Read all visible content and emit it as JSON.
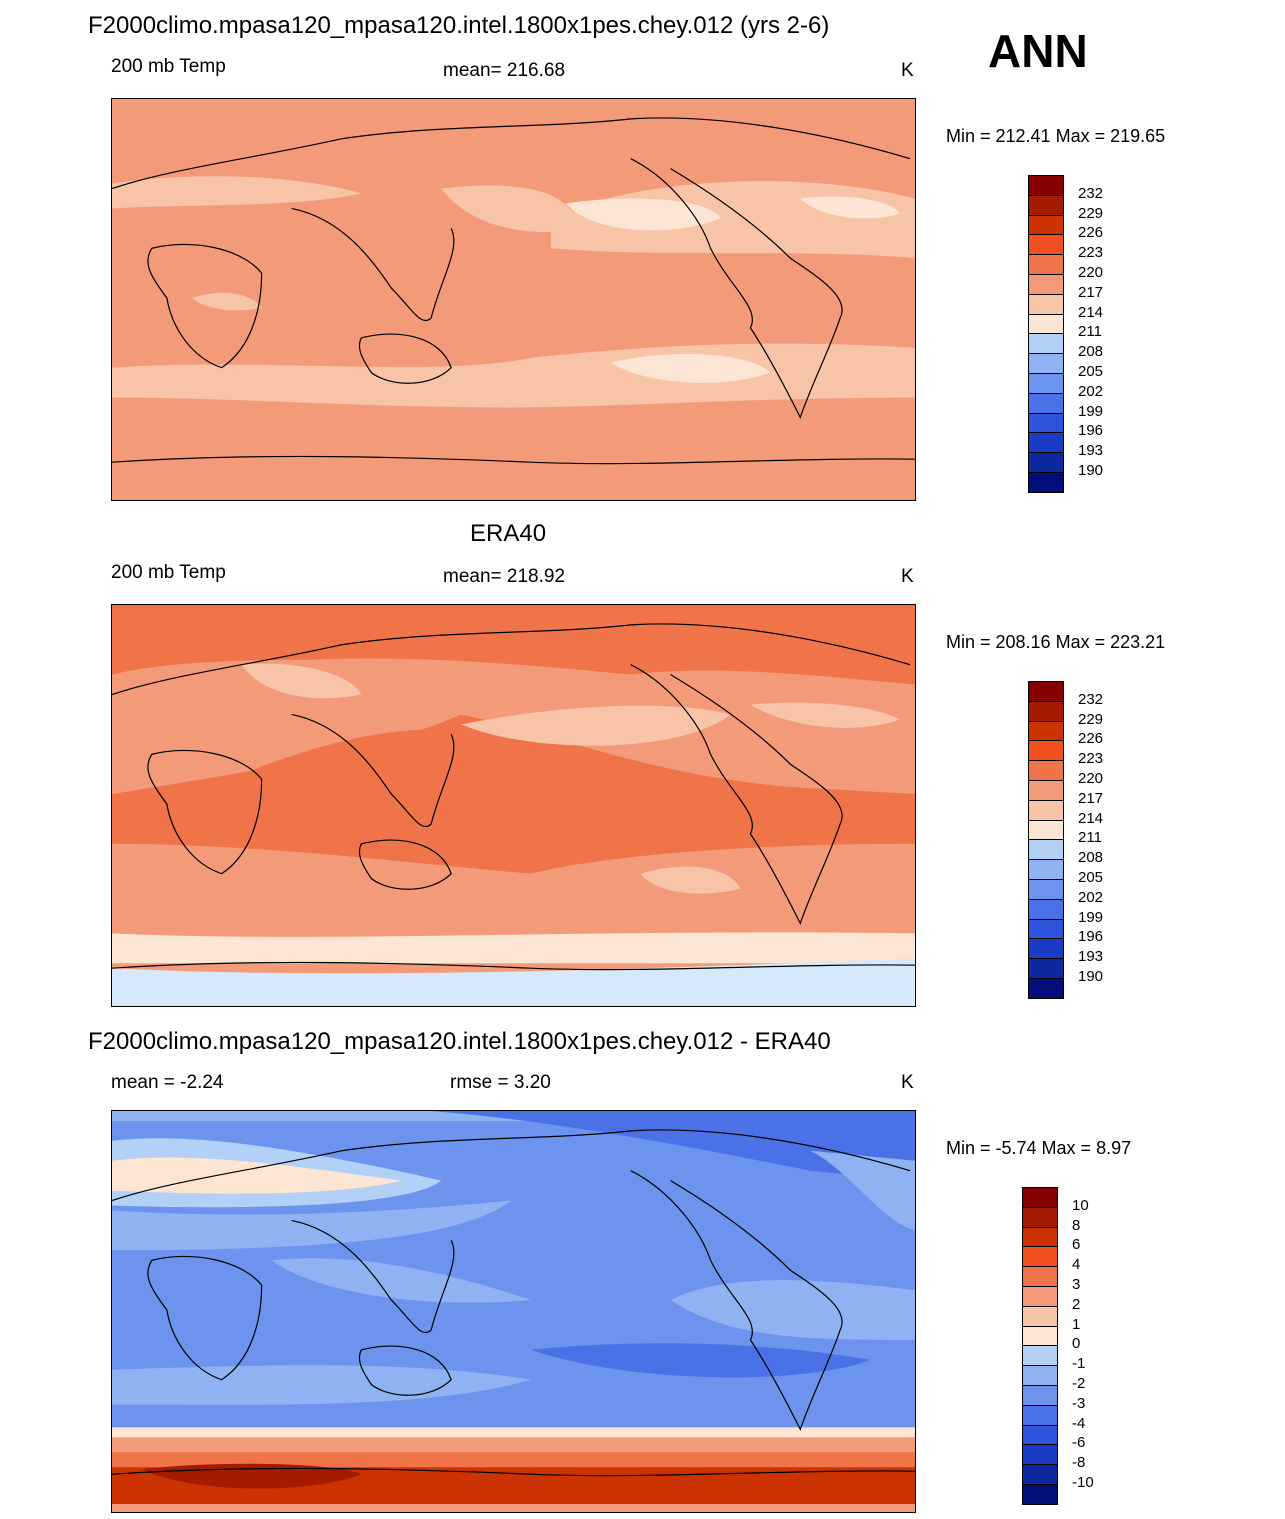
{
  "season": "ANN",
  "colors": {
    "warm_scale": [
      "#850000",
      "#a51b00",
      "#cc3300",
      "#f2501e",
      "#f0744a",
      "#f39b78",
      "#f8c4a8",
      "#fde5d4",
      "#d6e9fa",
      "#b3d0f7",
      "#8fb3f2",
      "#6c93ed",
      "#4a72e6",
      "#2f54dc",
      "#1c3bc4",
      "#0d279e",
      "#020f7b"
    ],
    "coast": "#000000"
  },
  "panels": [
    {
      "id": "model",
      "title": "F2000climo.mpasa120_mpasa120.intel.1800x1pes.chey.012 (yrs 2-6)",
      "left_label": "200 mb Temp",
      "center_label": "mean= 216.68",
      "right_label": "K",
      "minmax": "Min = 212.41 Max = 219.65",
      "legend": [
        "232",
        "229",
        "226",
        "223",
        "220",
        "217",
        "214",
        "211",
        "208",
        "205",
        "202",
        "199",
        "196",
        "193",
        "190"
      ]
    },
    {
      "id": "obs",
      "title": "ERA40",
      "left_label": "200 mb Temp",
      "center_label": "mean= 218.92",
      "right_label": "K",
      "minmax": "Min = 208.16 Max = 223.21",
      "legend": [
        "232",
        "229",
        "226",
        "223",
        "220",
        "217",
        "214",
        "211",
        "208",
        "205",
        "202",
        "199",
        "196",
        "193",
        "190"
      ]
    },
    {
      "id": "diff",
      "title": "F2000climo.mpasa120_mpasa120.intel.1800x1pes.chey.012 - ERA40",
      "left_label": "mean =  -2.24",
      "center_label": "rmse =   3.20",
      "right_label": "K",
      "minmax": "Min =  -5.74 Max =   8.97",
      "legend": [
        "10",
        "8",
        "6",
        "4",
        "3",
        "2",
        "1",
        "0",
        "-1",
        "-2",
        "-3",
        "-4",
        "-6",
        "-8",
        "-10"
      ]
    }
  ]
}
